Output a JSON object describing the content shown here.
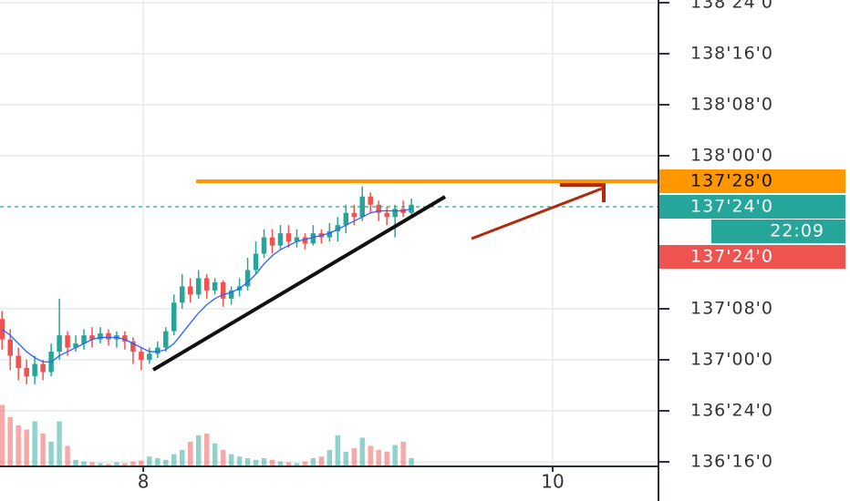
{
  "chart_data": {
    "type": "candlestick",
    "x": [
      7.31,
      7.35,
      7.39,
      7.43,
      7.47,
      7.51,
      7.55,
      7.59,
      7.63,
      7.67,
      7.71,
      7.75,
      7.79,
      7.83,
      7.87,
      7.91,
      7.95,
      7.99,
      8.03,
      8.07,
      8.11,
      8.15,
      8.19,
      8.23,
      8.27,
      8.31,
      8.35,
      8.39,
      8.43,
      8.47,
      8.51,
      8.55,
      8.59,
      8.63,
      8.67,
      8.71,
      8.75,
      8.79,
      8.83,
      8.87,
      8.91,
      8.95,
      8.99,
      9.03,
      9.07,
      9.11,
      9.15,
      9.19,
      9.23,
      9.27,
      9.31
    ],
    "open": [
      137.2,
      137.1,
      137.02,
      136.96,
      136.92,
      136.98,
      136.94,
      137.04,
      137.12,
      137.06,
      137.08,
      137.12,
      137.1,
      137.13,
      137.1,
      137.12,
      137.09,
      137.04,
      137.0,
      137.03,
      137.06,
      137.14,
      137.28,
      137.36,
      137.32,
      137.4,
      137.34,
      137.38,
      137.3,
      137.34,
      137.36,
      137.44,
      137.52,
      137.6,
      137.56,
      137.62,
      137.58,
      137.6,
      137.57,
      137.62,
      137.6,
      137.63,
      137.66,
      137.72,
      137.7,
      137.8,
      137.76,
      137.72,
      137.7,
      137.74,
      137.72
    ],
    "high": [
      137.24,
      137.15,
      137.06,
      137.0,
      137.02,
      137.0,
      137.08,
      137.3,
      137.14,
      137.12,
      137.15,
      137.16,
      137.16,
      137.15,
      137.14,
      137.14,
      137.11,
      137.06,
      137.06,
      137.09,
      137.16,
      137.32,
      137.42,
      137.4,
      137.44,
      137.42,
      137.4,
      137.39,
      137.36,
      137.4,
      137.5,
      137.58,
      137.64,
      137.64,
      137.66,
      137.66,
      137.64,
      137.62,
      137.66,
      137.64,
      137.67,
      137.7,
      137.76,
      137.76,
      137.85,
      137.82,
      137.78,
      137.75,
      137.76,
      137.78,
      137.79
    ],
    "low": [
      137.05,
      136.95,
      136.9,
      136.88,
      136.88,
      136.9,
      136.92,
      137.0,
      137.02,
      137.04,
      137.05,
      137.06,
      137.08,
      137.07,
      137.06,
      137.05,
      136.98,
      136.95,
      136.98,
      137.01,
      137.04,
      137.12,
      137.25,
      137.28,
      137.3,
      137.3,
      137.32,
      137.26,
      137.27,
      137.31,
      137.34,
      137.42,
      137.5,
      137.52,
      137.54,
      137.55,
      137.55,
      137.54,
      137.56,
      137.57,
      137.58,
      137.58,
      137.62,
      137.66,
      137.68,
      137.72,
      137.68,
      137.66,
      137.6,
      137.7,
      137.7
    ],
    "close": [
      137.1,
      137.02,
      136.96,
      136.92,
      136.98,
      136.94,
      137.04,
      137.12,
      137.06,
      137.08,
      137.12,
      137.1,
      137.13,
      137.1,
      137.12,
      137.09,
      137.04,
      137.0,
      137.03,
      137.06,
      137.14,
      137.28,
      137.36,
      137.32,
      137.4,
      137.34,
      137.38,
      137.3,
      137.34,
      137.36,
      137.44,
      137.52,
      137.6,
      137.56,
      137.62,
      137.58,
      137.6,
      137.57,
      137.62,
      137.6,
      137.63,
      137.66,
      137.72,
      137.7,
      137.8,
      137.76,
      137.72,
      137.7,
      137.74,
      137.72,
      137.76
    ],
    "ma": [
      137.15,
      137.12,
      137.08,
      137.04,
      137.01,
      136.99,
      136.99,
      137.02,
      137.04,
      137.06,
      137.08,
      137.1,
      137.11,
      137.11,
      137.11,
      137.1,
      137.08,
      137.06,
      137.04,
      137.04,
      137.05,
      137.08,
      137.13,
      137.18,
      137.23,
      137.27,
      137.3,
      137.32,
      137.33,
      137.35,
      137.38,
      137.42,
      137.47,
      137.51,
      137.54,
      137.56,
      137.58,
      137.59,
      137.6,
      137.61,
      137.62,
      137.64,
      137.66,
      137.68,
      137.7,
      137.72,
      137.73,
      137.73,
      137.73,
      137.73,
      137.74
    ],
    "volume": [
      75,
      60,
      50,
      45,
      55,
      40,
      30,
      55,
      25,
      8,
      6,
      5,
      4,
      3,
      5,
      4,
      6,
      7,
      12,
      10,
      8,
      15,
      20,
      30,
      38,
      40,
      28,
      20,
      15,
      12,
      10,
      8,
      10,
      8,
      6,
      5,
      4,
      6,
      10,
      12,
      20,
      38,
      18,
      22,
      35,
      25,
      20,
      18,
      26,
      30,
      10
    ],
    "volume_lim": [
      0,
      100
    ],
    "up_color": "#26a69a",
    "down_color": "#ef5350",
    "ma_color": "#2962ff",
    "xlim": [
      7.3,
      10.517
    ],
    "xticks": [
      8,
      10
    ],
    "ylim": [
      136.478,
      138.763
    ],
    "yticks": [
      {
        "value": 136.5,
        "label": "136'16'0"
      },
      {
        "value": 136.75,
        "label": "136'24'0"
      },
      {
        "value": 137,
        "label": "137'00'0"
      },
      {
        "value": 137.25,
        "label": "137'08'0"
      },
      {
        "value": 138,
        "label": "138'00'0"
      },
      {
        "value": 138.25,
        "label": "138'08'0"
      },
      {
        "value": 138.5,
        "label": "138'16'0"
      },
      {
        "value": 138.75,
        "label": "138'24'0"
      }
    ],
    "grid": true,
    "level": {
      "value": 137.875,
      "color": "#ff9800"
    },
    "price_labels": [
      {
        "value": 137.875,
        "label": "137'28'0",
        "color": "#ff9800"
      },
      {
        "value": 137.75,
        "label": "137'24'0",
        "color": "#26a69a"
      },
      {
        "value": 137.75,
        "label": "137'24'0",
        "color": "#ef5350"
      }
    ],
    "countdown": "22:09"
  }
}
